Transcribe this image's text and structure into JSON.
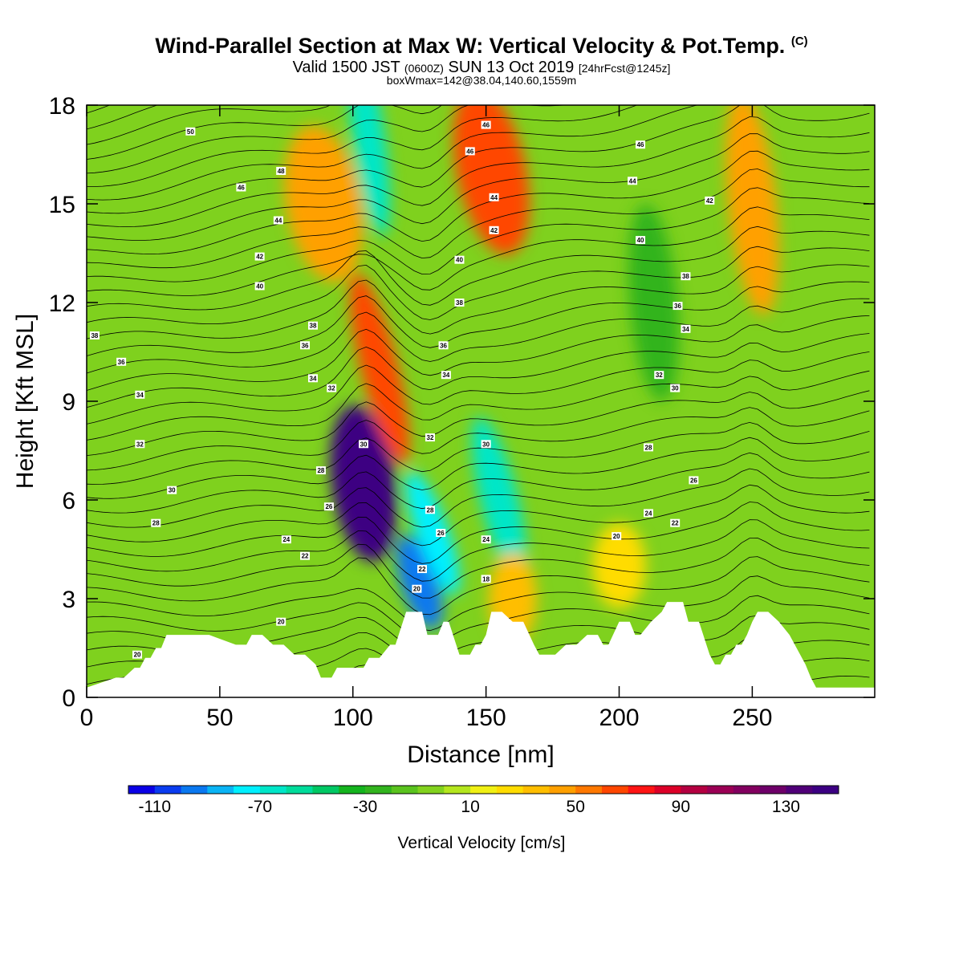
{
  "header": {
    "title": "Wind-Parallel Section at Max W: Vertical Velocity & Pot.Temp.",
    "copyright": "(C)",
    "subtitle_a": "Valid 1500 JST",
    "subtitle_b": "(0600Z)",
    "subtitle_c": "SUN 13 Oct 2019",
    "subtitle_d": "[24hrFcst@1245z]",
    "subtitle2": "boxWmax=142@38.04,140.60,1559m"
  },
  "chart_data": {
    "type": "heatmap",
    "xlabel": "Distance [nm]",
    "ylabel": "Height [Kft MSL]",
    "xlim": [
      0,
      296
    ],
    "ylim": [
      0,
      18
    ],
    "x_ticks": [
      "0",
      "50",
      "100",
      "150",
      "200",
      "250"
    ],
    "y_ticks": [
      "0",
      "3",
      "6",
      "9",
      "12",
      "15",
      "18"
    ],
    "x_tick_values": [
      0,
      50,
      100,
      150,
      200,
      250
    ],
    "y_tick_values": [
      0,
      3,
      6,
      9,
      12,
      15,
      18
    ],
    "background_color": "#7fd11e",
    "colorbar": {
      "title": "Vertical Velocity [cm/s]",
      "min": -120,
      "max": 150,
      "step": 10,
      "tick_labels": [
        "-110",
        "-70",
        "-30",
        "10",
        "50",
        "90",
        "130"
      ],
      "tick_values": [
        -110,
        -70,
        -30,
        10,
        50,
        90,
        130
      ],
      "colors": [
        "#0a00e6",
        "#0a3cf0",
        "#0a78f0",
        "#0ab4f5",
        "#00f0ff",
        "#00e6c8",
        "#00dc9b",
        "#00c864",
        "#14b41e",
        "#32b41e",
        "#5ac31e",
        "#82d21e",
        "#b4e61e",
        "#f0f014",
        "#ffdc00",
        "#ffbe00",
        "#ffa000",
        "#ff7800",
        "#ff4600",
        "#ff1414",
        "#dc0028",
        "#b40041",
        "#9b0055",
        "#82005f",
        "#6e0069",
        "#500078",
        "#3c0082"
      ]
    },
    "vertical_velocity_features": [
      {
        "x": 104,
        "z": 6.5,
        "w": 140
      },
      {
        "x": 110,
        "z": 10,
        "w": 60
      },
      {
        "x": 125,
        "z": 3.5,
        "w": -100
      },
      {
        "x": 130,
        "z": 5,
        "w": -80
      },
      {
        "x": 155,
        "z": 6,
        "w": -70
      },
      {
        "x": 106,
        "z": 17,
        "w": -70
      },
      {
        "x": 152,
        "z": 16,
        "w": 60
      },
      {
        "x": 89,
        "z": 15,
        "w": 45
      },
      {
        "x": 250,
        "z": 15,
        "w": 40
      },
      {
        "x": 160,
        "z": 3,
        "w": 30
      },
      {
        "x": 200,
        "z": 4,
        "w": 25
      },
      {
        "x": 213,
        "z": 12,
        "w": -25
      }
    ],
    "terrain": {
      "x": [
        0,
        11,
        14,
        18,
        20,
        22,
        24,
        26,
        28,
        30,
        46,
        56,
        60,
        62,
        66,
        70,
        74,
        78,
        82,
        86,
        88,
        92,
        94,
        98,
        104,
        106,
        110,
        114,
        116,
        120,
        122,
        124,
        126,
        128,
        132,
        134,
        136,
        140,
        144,
        146,
        148,
        150,
        152,
        156,
        160,
        164,
        168,
        170,
        176,
        180,
        184,
        188,
        192,
        194,
        196,
        200,
        204,
        206,
        208,
        212,
        216,
        218,
        224,
        226,
        230,
        234,
        236,
        238,
        240,
        242,
        244,
        246,
        248,
        250,
        252,
        256,
        260,
        264,
        268,
        270,
        272,
        274,
        276,
        278,
        282,
        290,
        296
      ],
      "z": [
        0.3,
        0.6,
        0.6,
        0.9,
        0.9,
        1.2,
        1.2,
        1.5,
        1.5,
        1.9,
        1.9,
        1.6,
        1.6,
        1.9,
        1.9,
        1.6,
        1.6,
        1.3,
        1.3,
        1.0,
        0.6,
        0.6,
        0.9,
        0.9,
        0.9,
        1.2,
        1.2,
        1.6,
        1.6,
        2.6,
        2.6,
        2.6,
        2.6,
        1.9,
        1.9,
        2.3,
        2.3,
        1.3,
        1.3,
        1.6,
        1.6,
        1.9,
        2.6,
        2.6,
        2.3,
        2.3,
        1.6,
        1.3,
        1.3,
        1.6,
        1.6,
        1.9,
        1.9,
        1.6,
        1.6,
        2.3,
        2.3,
        1.9,
        1.9,
        2.3,
        2.6,
        2.9,
        2.9,
        2.3,
        2.3,
        1.3,
        1.0,
        1.0,
        1.3,
        1.3,
        1.6,
        1.6,
        1.9,
        2.3,
        2.6,
        2.6,
        2.3,
        1.9,
        1.3,
        1.0,
        0.6,
        0.3,
        0.3,
        0.3,
        0.3,
        0.3,
        0.3
      ]
    },
    "contour_labels": [
      {
        "text": "50",
        "x": 39,
        "z": 17.2
      },
      {
        "text": "48",
        "x": 73,
        "z": 16.0
      },
      {
        "text": "46",
        "x": 58,
        "z": 15.5
      },
      {
        "text": "44",
        "x": 72,
        "z": 14.5
      },
      {
        "text": "42",
        "x": 65,
        "z": 13.4
      },
      {
        "text": "40",
        "x": 65,
        "z": 12.5
      },
      {
        "text": "38",
        "x": 3,
        "z": 11.0
      },
      {
        "text": "38",
        "x": 85,
        "z": 11.3
      },
      {
        "text": "36",
        "x": 13,
        "z": 10.2
      },
      {
        "text": "36",
        "x": 82,
        "z": 10.7
      },
      {
        "text": "34",
        "x": 20,
        "z": 9.2
      },
      {
        "text": "34",
        "x": 85,
        "z": 9.7
      },
      {
        "text": "32",
        "x": 92,
        "z": 9.4
      },
      {
        "text": "32",
        "x": 20,
        "z": 7.7
      },
      {
        "text": "30",
        "x": 104,
        "z": 7.7
      },
      {
        "text": "30",
        "x": 32,
        "z": 6.3
      },
      {
        "text": "28",
        "x": 26,
        "z": 5.3
      },
      {
        "text": "28",
        "x": 88,
        "z": 6.9
      },
      {
        "text": "26",
        "x": 91,
        "z": 5.8
      },
      {
        "text": "24",
        "x": 75,
        "z": 4.8
      },
      {
        "text": "22",
        "x": 82,
        "z": 4.3
      },
      {
        "text": "20",
        "x": 73,
        "z": 2.3
      },
      {
        "text": "20",
        "x": 19,
        "z": 1.3
      },
      {
        "text": "46",
        "x": 150,
        "z": 17.4
      },
      {
        "text": "46",
        "x": 144,
        "z": 16.6
      },
      {
        "text": "44",
        "x": 153,
        "z": 15.2
      },
      {
        "text": "42",
        "x": 153,
        "z": 14.2
      },
      {
        "text": "40",
        "x": 140,
        "z": 13.3
      },
      {
        "text": "38",
        "x": 140,
        "z": 12.0
      },
      {
        "text": "36",
        "x": 134,
        "z": 10.7
      },
      {
        "text": "34",
        "x": 135,
        "z": 9.8
      },
      {
        "text": "32",
        "x": 129,
        "z": 7.9
      },
      {
        "text": "30",
        "x": 150,
        "z": 7.7
      },
      {
        "text": "28",
        "x": 129,
        "z": 5.7
      },
      {
        "text": "26",
        "x": 133,
        "z": 5.0
      },
      {
        "text": "24",
        "x": 150,
        "z": 4.8
      },
      {
        "text": "22",
        "x": 126,
        "z": 3.9
      },
      {
        "text": "20",
        "x": 124,
        "z": 3.3
      },
      {
        "text": "18",
        "x": 150,
        "z": 3.6
      },
      {
        "text": "46",
        "x": 208,
        "z": 16.8
      },
      {
        "text": "44",
        "x": 205,
        "z": 15.7
      },
      {
        "text": "42",
        "x": 234,
        "z": 15.1
      },
      {
        "text": "40",
        "x": 208,
        "z": 13.9
      },
      {
        "text": "38",
        "x": 225,
        "z": 12.8
      },
      {
        "text": "36",
        "x": 222,
        "z": 11.9
      },
      {
        "text": "34",
        "x": 225,
        "z": 11.2
      },
      {
        "text": "32",
        "x": 215,
        "z": 9.8
      },
      {
        "text": "30",
        "x": 221,
        "z": 9.4
      },
      {
        "text": "28",
        "x": 211,
        "z": 7.6
      },
      {
        "text": "26",
        "x": 228,
        "z": 6.6
      },
      {
        "text": "24",
        "x": 211,
        "z": 5.6
      },
      {
        "text": "22",
        "x": 221,
        "z": 5.3
      },
      {
        "text": "20",
        "x": 199,
        "z": 4.9
      }
    ]
  }
}
